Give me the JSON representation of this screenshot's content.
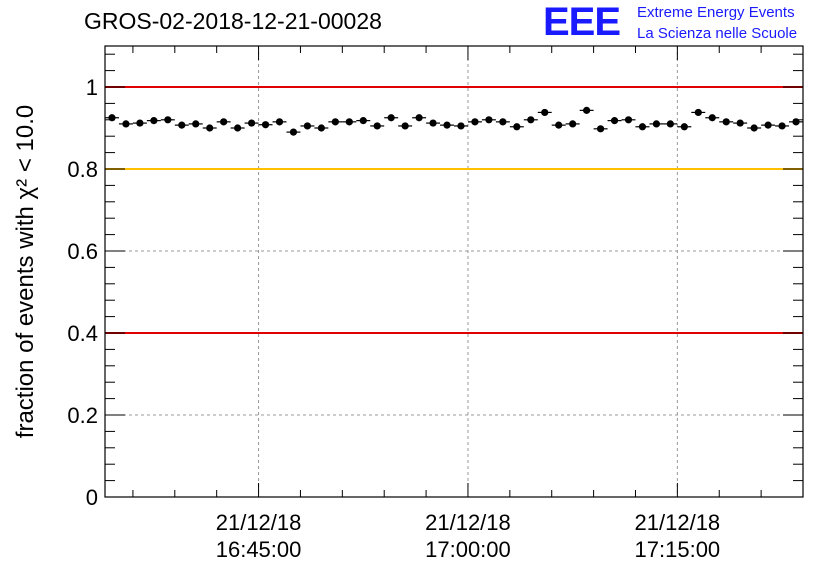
{
  "header": {
    "title": "GROS-02-2018-12-21-00028",
    "logo_mark": "EEE",
    "logo_line1": "Extreme Energy Events",
    "logo_line2": "La Scienza nelle Scuole"
  },
  "colors": {
    "data": "#000000",
    "ref_red": "#e00000",
    "ref_yellow": "#ffc000",
    "grid": "#999999",
    "logo": "#1a1aff"
  },
  "chart_data": {
    "type": "scatter",
    "ylabel": "fraction of events with χ² < 10.0",
    "ylim": [
      0,
      1.1
    ],
    "xlim": [
      "2018-12-21 16:34:00",
      "2018-12-21 17:24:00"
    ],
    "x_ticks": [
      {
        "date": "21/12/18",
        "time": "16:45:00"
      },
      {
        "date": "21/12/18",
        "time": "17:00:00"
      },
      {
        "date": "21/12/18",
        "time": "17:15:00"
      }
    ],
    "y_ticks": [
      "0",
      "0.2",
      "0.4",
      "0.6",
      "0.8",
      "1"
    ],
    "grid": true,
    "reference_lines": [
      {
        "y": 1.0,
        "color": "red"
      },
      {
        "y": 0.8,
        "color": "yellow"
      },
      {
        "y": 0.4,
        "color": "red"
      }
    ],
    "series": [
      {
        "x": [
          "16:34:30",
          "16:35:30",
          "16:36:30",
          "16:37:30",
          "16:38:30",
          "16:39:30",
          "16:40:30",
          "16:41:30",
          "16:42:30",
          "16:43:30",
          "16:44:30",
          "16:45:30",
          "16:46:30",
          "16:47:30",
          "16:48:30",
          "16:49:30",
          "16:50:30",
          "16:51:30",
          "16:52:30",
          "16:53:30",
          "16:54:30",
          "16:55:30",
          "16:56:30",
          "16:57:30",
          "16:58:30",
          "16:59:30",
          "17:00:30",
          "17:01:30",
          "17:02:30",
          "17:03:30",
          "17:04:30",
          "17:05:30",
          "17:06:30",
          "17:07:30",
          "17:08:30",
          "17:09:30",
          "17:10:30",
          "17:11:30",
          "17:12:30",
          "17:13:30",
          "17:14:30",
          "17:15:30",
          "17:16:30",
          "17:17:30",
          "17:18:30",
          "17:19:30",
          "17:20:30",
          "17:21:30",
          "17:22:30",
          "17:23:30"
        ],
        "y": [
          0.925,
          0.91,
          0.912,
          0.918,
          0.92,
          0.907,
          0.91,
          0.9,
          0.915,
          0.9,
          0.912,
          0.908,
          0.915,
          0.89,
          0.905,
          0.9,
          0.915,
          0.915,
          0.918,
          0.905,
          0.925,
          0.905,
          0.925,
          0.912,
          0.907,
          0.905,
          0.915,
          0.92,
          0.915,
          0.903,
          0.92,
          0.938,
          0.907,
          0.91,
          0.943,
          0.898,
          0.918,
          0.92,
          0.903,
          0.91,
          0.91,
          0.903,
          0.938,
          0.925,
          0.915,
          0.912,
          0.9,
          0.907,
          0.905,
          0.915
        ],
        "error": 0.006
      }
    ]
  }
}
